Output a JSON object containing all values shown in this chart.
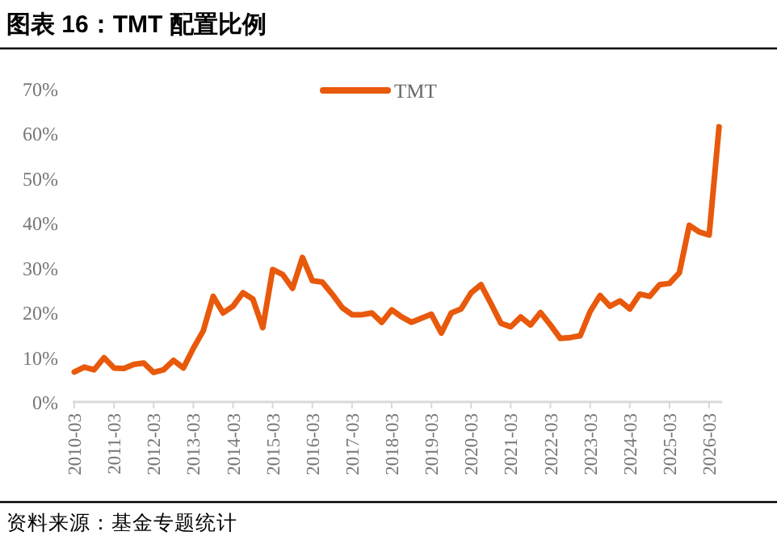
{
  "chart_data": {
    "type": "line",
    "title": "图表 16：TMT 配置比例",
    "categories": [
      "2010-03",
      null,
      null,
      null,
      "2011-03",
      null,
      null,
      null,
      "2012-03",
      null,
      null,
      null,
      "2013-03",
      null,
      null,
      null,
      "2014-03",
      null,
      null,
      null,
      "2015-03",
      null,
      null,
      null,
      "2016-03",
      null,
      null,
      null,
      "2017-03",
      null,
      null,
      null,
      "2018-03",
      null,
      null,
      null,
      "2019-03",
      null,
      null,
      null,
      "2020-03",
      null,
      null,
      null,
      "2021-03",
      null,
      null,
      null,
      "2022-03",
      null,
      null,
      null,
      "2023-03",
      null,
      null,
      null,
      "2024-03",
      null,
      null,
      null,
      "2025-03",
      null,
      null,
      null,
      "2026-03",
      null
    ],
    "series": [
      {
        "name": "TMT",
        "color": "#e8590c",
        "values": [
          6.7,
          7.8,
          7.2,
          9.9,
          7.6,
          7.5,
          8.4,
          8.7,
          6.6,
          7.2,
          9.3,
          7.6,
          12.0,
          15.9,
          23.6,
          19.9,
          21.4,
          24.4,
          23.0,
          16.6,
          29.6,
          28.5,
          25.4,
          32.3,
          27.1,
          26.8,
          24.1,
          21.1,
          19.5,
          19.5,
          19.9,
          17.8,
          20.6,
          19.0,
          17.8,
          18.7,
          19.6,
          15.4,
          19.9,
          20.8,
          24.4,
          26.2,
          22.0,
          17.6,
          16.8,
          19.0,
          17.2,
          20.0,
          17.2,
          14.2,
          14.4,
          14.8,
          20.2,
          23.8,
          21.4,
          22.6,
          20.8,
          24.1,
          23.6,
          26.2,
          26.5,
          28.9,
          39.5,
          38.0,
          37.3,
          61.5
        ]
      }
    ],
    "ylim": [
      0,
      70
    ],
    "yticks": [
      {
        "value": 0,
        "label": "0%"
      },
      {
        "value": 10,
        "label": "10%"
      },
      {
        "value": 20,
        "label": "20%"
      },
      {
        "value": 30,
        "label": "30%"
      },
      {
        "value": 40,
        "label": "40%"
      },
      {
        "value": 50,
        "label": "50%"
      },
      {
        "value": 60,
        "label": "60%"
      },
      {
        "value": 70,
        "label": "70%"
      }
    ],
    "grid": false,
    "legend": "top",
    "marker": "none",
    "line_style": "solid",
    "annotations": [
      "资料来源：基金专题统计"
    ]
  }
}
